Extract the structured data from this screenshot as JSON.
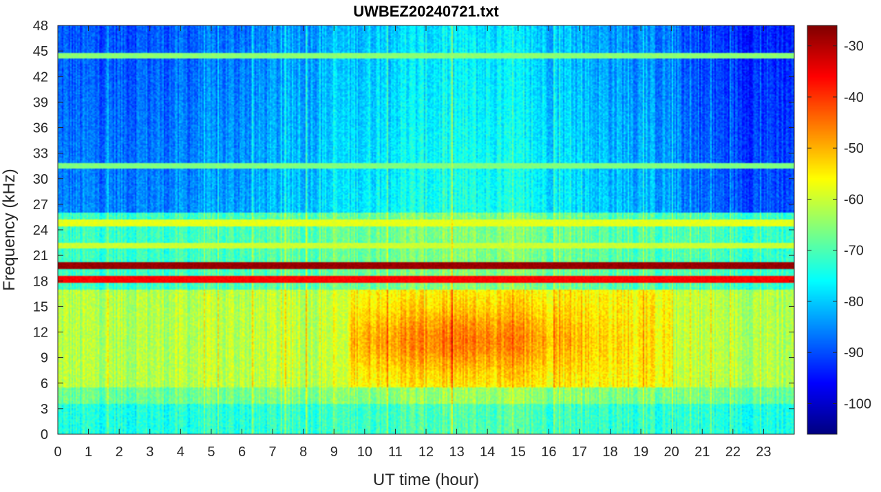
{
  "chart_data": {
    "type": "heatmap",
    "title": "UWBEZ20240721.txt",
    "xlabel": "UT time (hour)",
    "ylabel": "Frequency (kHz)",
    "xlim": [
      0,
      24
    ],
    "ylim": [
      0,
      48
    ],
    "x_ticks": [
      "0",
      "1",
      "2",
      "3",
      "4",
      "5",
      "6",
      "7",
      "8",
      "9",
      "10",
      "11",
      "12",
      "13",
      "14",
      "15",
      "16",
      "17",
      "18",
      "19",
      "20",
      "21",
      "22",
      "23"
    ],
    "y_ticks": [
      "0",
      "3",
      "6",
      "9",
      "12",
      "15",
      "18",
      "21",
      "24",
      "27",
      "30",
      "33",
      "36",
      "39",
      "42",
      "45",
      "48"
    ],
    "colormap": "jet",
    "clim": [
      -106,
      -26
    ],
    "colorbar_ticks": [
      "-30",
      "-40",
      "-50",
      "-60",
      "-70",
      "-80",
      "-90",
      "-100"
    ],
    "colorbar_tick_values": [
      -30,
      -40,
      -50,
      -60,
      -70,
      -80,
      -90,
      -100
    ],
    "persistent_lines_khz": [
      {
        "freq": 19.8,
        "level": -28
      },
      {
        "freq": 18.2,
        "level": -36
      },
      {
        "freq": 24.8,
        "level": -58
      },
      {
        "freq": 22.1,
        "level": -60
      },
      {
        "freq": 44.4,
        "level": -65
      },
      {
        "freq": 31.5,
        "level": -66
      }
    ],
    "broadband_enhancement": {
      "freq_range": [
        6,
        17
      ],
      "time_range": [
        9.5,
        20
      ],
      "peak_level": -50
    }
  }
}
